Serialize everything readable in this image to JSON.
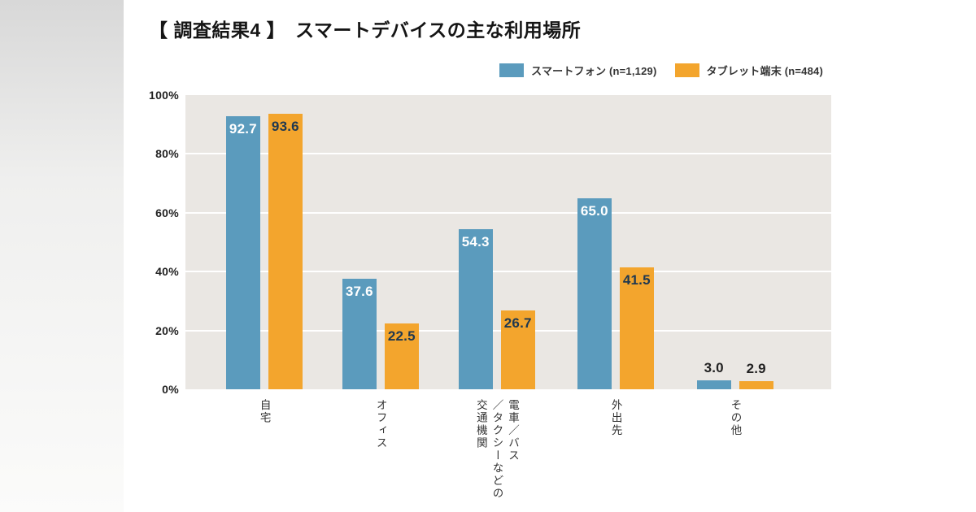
{
  "title": "【 調査結果4 】　スマートデバイスの主な利用場所",
  "legend": {
    "items": [
      {
        "label": "スマートフォン (n=1,129)",
        "color": "#5b9bbd"
      },
      {
        "label": "タブレット端末 (n=484)",
        "color": "#f3a52d"
      }
    ]
  },
  "colors": {
    "smartphone_bar": "#5b9bbd",
    "tablet_bar": "#f3a52d",
    "plot_background": "#eae7e3",
    "gridline": "#ffffff",
    "label_on_blue": "#ffffff",
    "label_on_orange": "#1f3850",
    "label_outside": "#222222"
  },
  "chart_data": {
    "type": "bar",
    "title": "スマートデバイスの主な利用場所",
    "categories": [
      "自宅",
      "オフィス",
      "電車／バス\n／タクシーなどの\n交通機関",
      "外出先",
      "その他"
    ],
    "series": [
      {
        "name": "スマートフォン (n=1,129)",
        "color": "#5b9bbd",
        "values": [
          92.7,
          37.6,
          54.3,
          65.0,
          3.0
        ]
      },
      {
        "name": "タブレット端末 (n=484)",
        "color": "#f3a52d",
        "values": [
          93.6,
          22.5,
          26.7,
          41.5,
          2.9
        ]
      }
    ],
    "xlabel": "",
    "ylabel": "",
    "ylim": [
      0,
      100
    ],
    "ytick_labels": [
      "100%",
      "80%",
      "60%",
      "40%",
      "20%",
      "0%"
    ],
    "grid": true,
    "legend_position": "top-right",
    "value_labels": "one-decimal"
  }
}
